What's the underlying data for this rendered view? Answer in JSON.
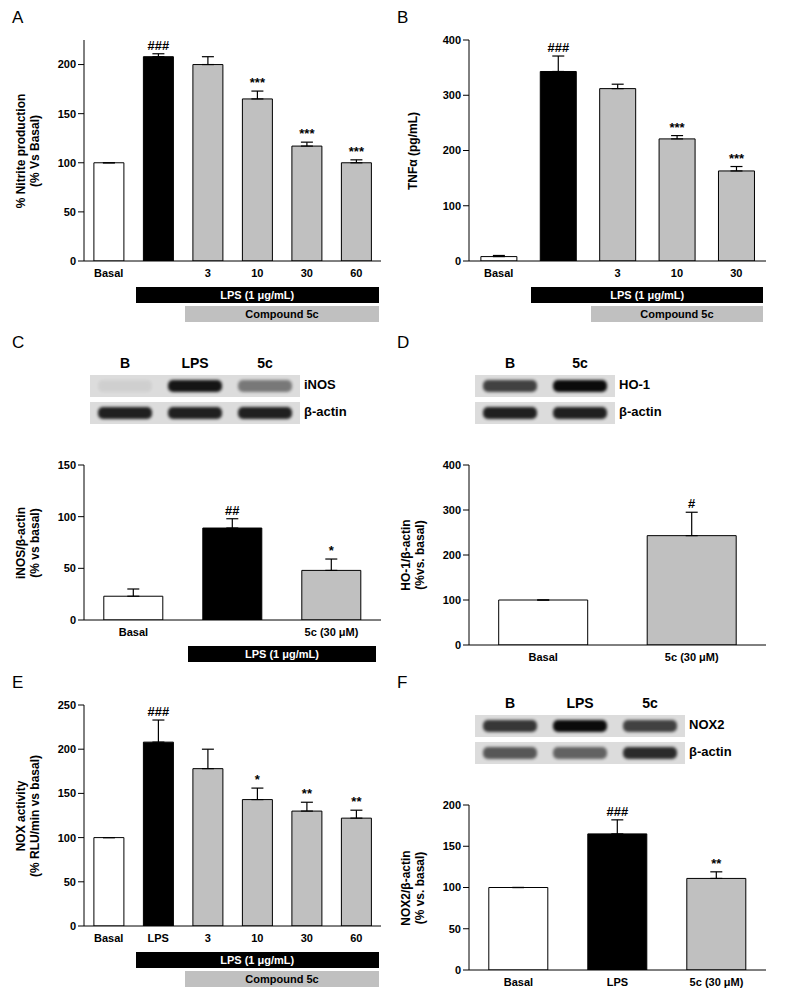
{
  "chart_data": [
    {
      "type": "bar",
      "title": "A",
      "y_label": [
        "% Nitrite production",
        "(% Vs Basal)"
      ],
      "categories": [
        "Basal",
        null,
        "3",
        "10",
        "30",
        "60"
      ],
      "values": [
        100,
        208,
        200,
        165,
        117,
        100
      ],
      "errors": [
        0,
        3,
        8,
        8,
        4,
        3
      ],
      "marks": [
        null,
        "###",
        null,
        "***",
        "***",
        "***"
      ],
      "colors": [
        "#ffffff",
        "#000000",
        "#c0c0c0",
        "#c0c0c0",
        "#c0c0c0",
        "#c0c0c0"
      ],
      "ylim": [
        0,
        225
      ],
      "yticks": [
        0,
        50,
        100,
        150,
        200
      ],
      "grid": false,
      "treatment_bars": [
        {
          "label": "LPS (1 μg/mL)",
          "from": 1,
          "to": 5,
          "color": "#000000"
        },
        {
          "label": "Compound 5c",
          "from": 2,
          "to": 5,
          "color": "#c0c0c0"
        }
      ]
    },
    {
      "type": "bar",
      "title": "B",
      "y_label": [
        "TNFα (pg/mL)"
      ],
      "categories": [
        "Basal",
        null,
        "3",
        "10",
        "30"
      ],
      "values": [
        8,
        343,
        312,
        221,
        163
      ],
      "errors": [
        2,
        28,
        8,
        6,
        8
      ],
      "marks": [
        null,
        "###",
        null,
        "***",
        "***"
      ],
      "colors": [
        "#ffffff",
        "#000000",
        "#c0c0c0",
        "#c0c0c0",
        "#c0c0c0"
      ],
      "ylim": [
        0,
        400
      ],
      "yticks": [
        0,
        100,
        200,
        300,
        400
      ],
      "grid": false,
      "treatment_bars": [
        {
          "label": "LPS (1 μg/mL)",
          "from": 1,
          "to": 4,
          "color": "#000000"
        },
        {
          "label": "Compound 5c",
          "from": 2,
          "to": 4,
          "color": "#c0c0c0"
        }
      ]
    },
    {
      "type": "bar",
      "title": "C",
      "y_label": [
        "iNOS/β-actin",
        "(% vs basal)"
      ],
      "blot": {
        "lanes": [
          "B",
          "LPS",
          "5c"
        ],
        "rows": [
          {
            "label": "iNOS",
            "intensity": [
              0.05,
              0.9,
              0.45
            ]
          },
          {
            "label": "β-actin",
            "intensity": [
              0.85,
              0.85,
              0.85
            ]
          }
        ]
      },
      "categories": [
        "Basal",
        null,
        "5c (30 μM)"
      ],
      "values": [
        23,
        89,
        48
      ],
      "errors": [
        7,
        9,
        11
      ],
      "marks": [
        null,
        "##",
        "*"
      ],
      "colors": [
        "#ffffff",
        "#000000",
        "#c0c0c0"
      ],
      "ylim": [
        0,
        150
      ],
      "yticks": [
        0,
        50,
        100,
        150
      ],
      "grid": false,
      "treatment_bars": [
        {
          "label": "LPS (1 μg/mL)",
          "from": 1,
          "to": 2,
          "color": "#000000"
        }
      ]
    },
    {
      "type": "bar",
      "title": "D",
      "y_label": [
        "HO-1/β-actin",
        "(%vs. basal)"
      ],
      "blot": {
        "lanes": [
          "B",
          "5c"
        ],
        "rows": [
          {
            "label": "HO-1",
            "intensity": [
              0.7,
              0.95
            ]
          },
          {
            "label": "β-actin",
            "intensity": [
              0.85,
              0.85
            ]
          }
        ]
      },
      "categories": [
        "Basal",
        "5c (30 μM)"
      ],
      "values": [
        100,
        243
      ],
      "errors": [
        0,
        52
      ],
      "marks": [
        null,
        "#"
      ],
      "colors": [
        "#ffffff",
        "#c0c0c0"
      ],
      "ylim": [
        0,
        400
      ],
      "yticks": [
        0,
        100,
        200,
        300,
        400
      ],
      "grid": false
    },
    {
      "type": "bar",
      "title": "E",
      "y_label": [
        "NOX activity",
        "(% RLU/min vs basal)"
      ],
      "categories": [
        "Basal",
        "LPS",
        "3",
        "10",
        "30",
        "60"
      ],
      "values": [
        100,
        208,
        178,
        143,
        130,
        122
      ],
      "errors": [
        0,
        25,
        22,
        13,
        10,
        9
      ],
      "marks": [
        null,
        "###",
        null,
        "*",
        "**",
        "**"
      ],
      "colors": [
        "#ffffff",
        "#000000",
        "#c0c0c0",
        "#c0c0c0",
        "#c0c0c0",
        "#c0c0c0"
      ],
      "ylim": [
        0,
        250
      ],
      "yticks": [
        0,
        50,
        100,
        150,
        200,
        250
      ],
      "grid": false,
      "treatment_bars": [
        {
          "label": "LPS (1 μg/mL)",
          "from": 1,
          "to": 5,
          "color": "#000000"
        },
        {
          "label": "Compound 5c",
          "from": 2,
          "to": 5,
          "color": "#c0c0c0"
        }
      ]
    },
    {
      "type": "bar",
      "title": "F",
      "y_label": [
        "NOX2/β-actin",
        "(% vs. basal)"
      ],
      "blot": {
        "lanes": [
          "B",
          "LPS",
          "5c"
        ],
        "rows": [
          {
            "label": "NOX2",
            "intensity": [
              0.75,
              0.95,
              0.7
            ]
          },
          {
            "label": "β-actin",
            "intensity": [
              0.6,
              0.55,
              0.8
            ]
          }
        ]
      },
      "categories": [
        "Basal",
        "LPS",
        "5c (30 μM)"
      ],
      "values": [
        100,
        165,
        111
      ],
      "errors": [
        0,
        17,
        8
      ],
      "marks": [
        null,
        "###",
        "**"
      ],
      "colors": [
        "#ffffff",
        "#000000",
        "#c0c0c0"
      ],
      "ylim": [
        0,
        200
      ],
      "yticks": [
        0,
        50,
        100,
        150,
        200
      ],
      "grid": false
    }
  ]
}
